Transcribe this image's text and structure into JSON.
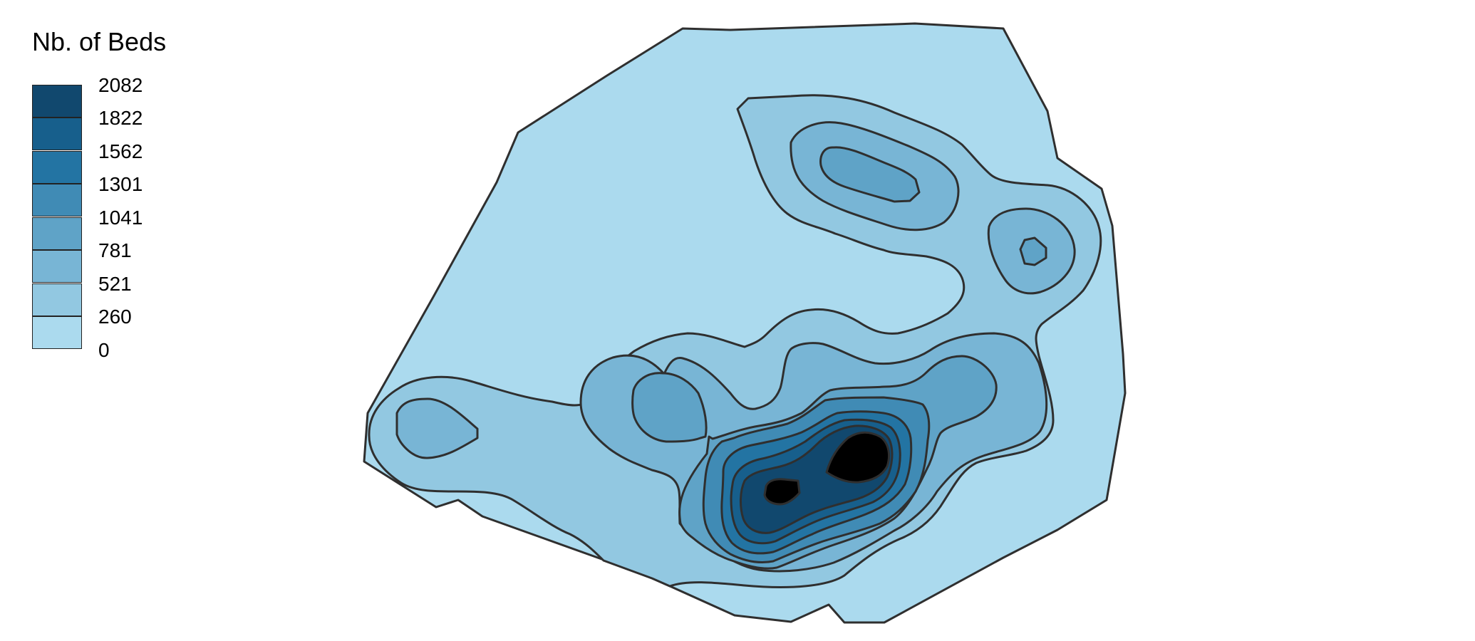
{
  "legend": {
    "title": "Nb. of Beds",
    "breaks": [
      "2082",
      "1822",
      "1562",
      "1301",
      "1041",
      "781",
      "521",
      "260",
      "0"
    ],
    "colors": [
      "#11486e",
      "#175f8c",
      "#2374a3",
      "#408bb5",
      "#5fa3c7",
      "#78b5d5",
      "#92c8e1",
      "#abdaee"
    ]
  }
}
